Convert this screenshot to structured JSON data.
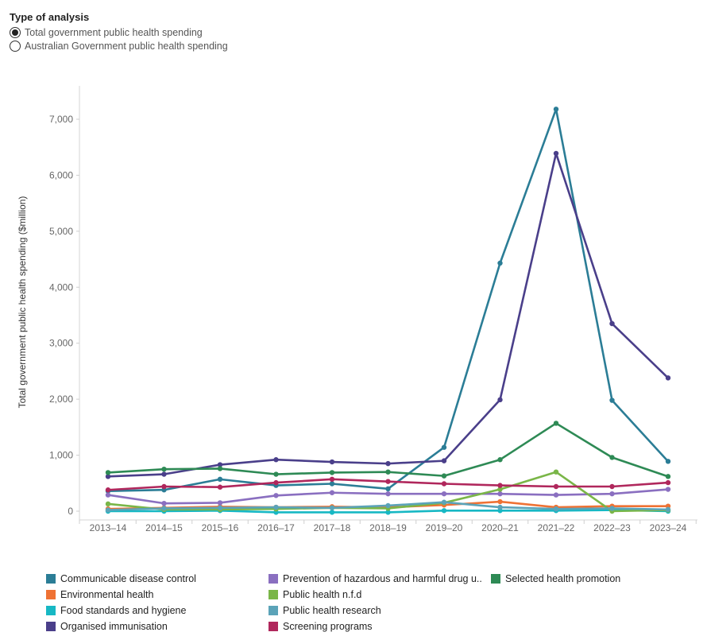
{
  "controls": {
    "title": "Type of analysis",
    "options": [
      {
        "label": "Total government public health spending",
        "selected": true
      },
      {
        "label": "Australian Government public health spending",
        "selected": false
      }
    ]
  },
  "chart_data": {
    "type": "line",
    "title": "",
    "ylabel": "Total government public health spending ($million)",
    "xlabel": "",
    "ylim": [
      0,
      7500
    ],
    "yticks": [
      0,
      1000,
      2000,
      3000,
      4000,
      5000,
      6000,
      7000
    ],
    "ytick_labels": [
      "0",
      "1,000",
      "2,000",
      "3,000",
      "4,000",
      "5,000",
      "6,000",
      "7,000"
    ],
    "grid": false,
    "legend_position": "bottom",
    "categories": [
      "2013–14",
      "2014–15",
      "2015–16",
      "2016–17",
      "2017–18",
      "2018–19",
      "2019–20",
      "2020–21",
      "2021–22",
      "2022–23",
      "2023–24"
    ],
    "series": [
      {
        "name": "Communicable disease control",
        "color": "#2b7d96",
        "values": [
          360,
          380,
          570,
          460,
          490,
          400,
          1140,
          4430,
          7180,
          1980,
          890
        ]
      },
      {
        "name": "Environmental health",
        "color": "#ef7234",
        "values": [
          40,
          60,
          80,
          70,
          80,
          70,
          110,
          170,
          70,
          90,
          90
        ]
      },
      {
        "name": "Food standards and hygiene",
        "color": "#17b8c4",
        "values": [
          0,
          0,
          10,
          -20,
          -20,
          -20,
          10,
          10,
          10,
          20,
          0
        ]
      },
      {
        "name": "Organised immunisation",
        "color": "#4a3f8a",
        "values": [
          620,
          660,
          830,
          920,
          880,
          850,
          900,
          1990,
          6390,
          3350,
          2380
        ]
      },
      {
        "name": "Prevention of hazardous and harmful drug u..",
        "color": "#8a6fc0",
        "values": [
          290,
          140,
          150,
          280,
          330,
          310,
          310,
          310,
          290,
          310,
          390
        ]
      },
      {
        "name": "Public health n.f.d",
        "color": "#7ab648",
        "values": [
          130,
          30,
          30,
          40,
          60,
          50,
          150,
          390,
          700,
          0,
          20
        ]
      },
      {
        "name": "Public health research",
        "color": "#5ba3b8",
        "values": [
          20,
          50,
          60,
          70,
          60,
          100,
          160,
          70,
          40,
          50,
          30
        ]
      },
      {
        "name": "Screening programs",
        "color": "#b0275c",
        "values": [
          380,
          440,
          430,
          510,
          570,
          530,
          490,
          460,
          440,
          440,
          510
        ]
      },
      {
        "name": "Selected health promotion",
        "color": "#2e8a55",
        "values": [
          690,
          750,
          760,
          660,
          690,
          700,
          630,
          920,
          1570,
          960,
          620
        ]
      }
    ]
  }
}
